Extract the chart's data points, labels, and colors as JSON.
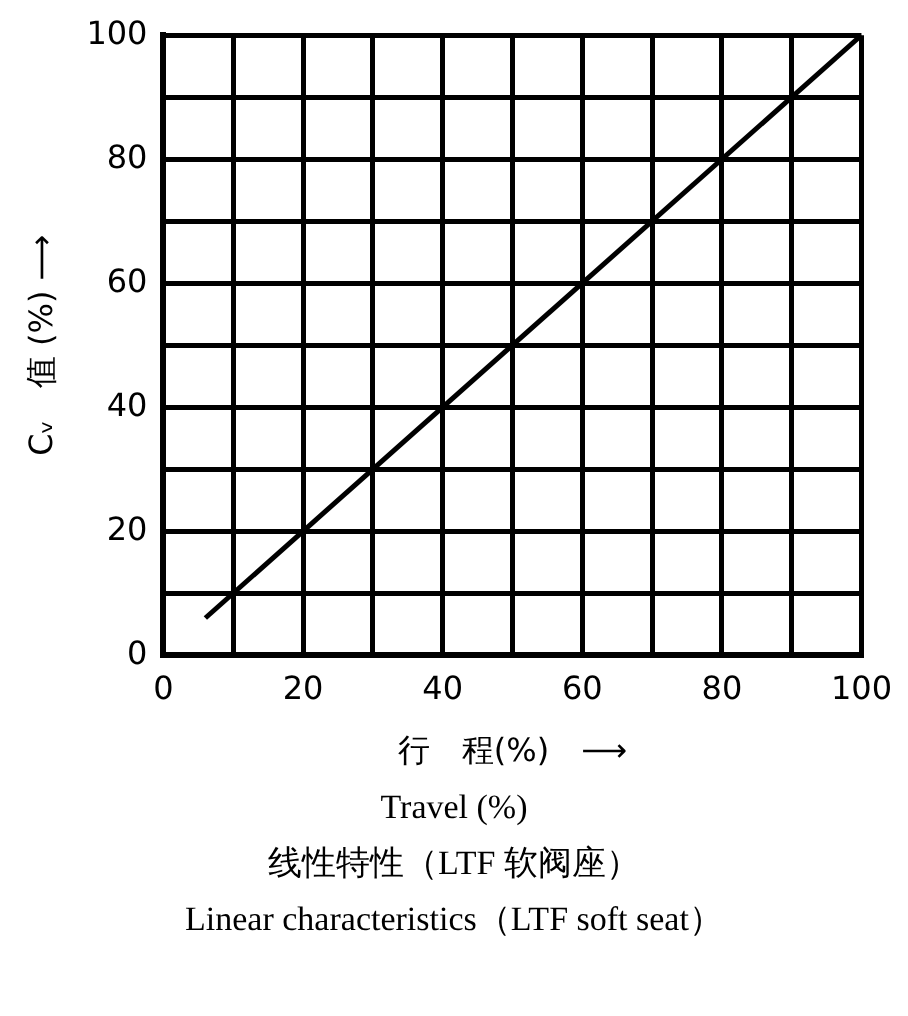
{
  "chart_data": {
    "type": "line",
    "x": [
      6,
      100
    ],
    "series": [
      {
        "color": "#000000",
        "values": [
          6,
          100
        ]
      }
    ],
    "xlabel": "行　程(%)　⟶",
    "ylabel": "Cᵥ　值 (%) ⟶",
    "xlim": [
      0,
      100
    ],
    "ylim": [
      0,
      100
    ],
    "xticks": [
      0,
      {
        "value": 10,
        "label": null
      },
      20,
      {
        "value": 30,
        "label": null
      },
      40,
      {
        "value": 50,
        "label": null
      },
      60,
      {
        "value": 70,
        "label": null
      },
      80,
      {
        "value": 90,
        "label": null
      },
      100
    ],
    "yticks": [
      0,
      {
        "value": 10,
        "label": null
      },
      20,
      {
        "value": 30,
        "label": null
      },
      40,
      {
        "value": 50,
        "label": null
      },
      60,
      {
        "value": 70,
        "label": null
      },
      80,
      {
        "value": 90,
        "label": null
      },
      100
    ],
    "grid": true,
    "legend": false,
    "marker": "none",
    "line_style": "solid",
    "annotations": [
      "Travel (%)",
      "线性特性（LTF  软阀座）",
      "Linear characteristics（LTF soft seat）"
    ]
  }
}
